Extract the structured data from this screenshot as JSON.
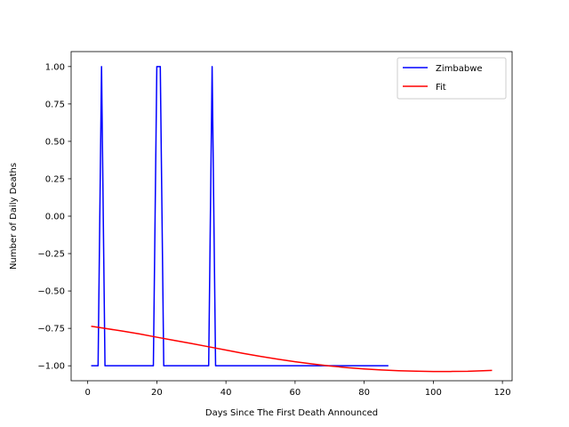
{
  "chart_data": {
    "type": "line",
    "xlabel": "Days Since The First Death Announced",
    "ylabel": "Number of Daily Deaths",
    "xlim": [
      -4.8,
      122.8
    ],
    "ylim": [
      -1.1,
      1.1
    ],
    "x_ticks": [
      0,
      20,
      40,
      60,
      80,
      100,
      120
    ],
    "x_tick_labels": [
      "0",
      "20",
      "40",
      "60",
      "80",
      "100",
      "120"
    ],
    "y_ticks": [
      1.0,
      0.75,
      0.5,
      0.25,
      0.0,
      -0.25,
      -0.5,
      -0.75,
      -1.0
    ],
    "y_tick_labels": [
      "1.00",
      "0.75",
      "0.50",
      "0.25",
      "0.00",
      "−0.25",
      "−0.50",
      "−0.75",
      "−1.00"
    ],
    "grid": false,
    "legend_position": "top-right",
    "series": [
      {
        "name": "Zimbabwe",
        "color": "#0000ff",
        "x": [
          1,
          2,
          3,
          4,
          5,
          6,
          7,
          8,
          9,
          10,
          11,
          12,
          13,
          14,
          15,
          16,
          17,
          18,
          19,
          20,
          21,
          22,
          23,
          24,
          25,
          26,
          27,
          28,
          29,
          30,
          31,
          32,
          33,
          34,
          35,
          36,
          37,
          38,
          39,
          40,
          41,
          42,
          43,
          44,
          45,
          46,
          47,
          48,
          49,
          50,
          51,
          52,
          53,
          54,
          55,
          56,
          57,
          58,
          59,
          60,
          61,
          62,
          63,
          64,
          65,
          66,
          67,
          68,
          69,
          70,
          71,
          72,
          73,
          74,
          75,
          76,
          77,
          78,
          79,
          80,
          81,
          82,
          83,
          84,
          85,
          86,
          87
        ],
        "y": [
          -1,
          -1,
          -1,
          1,
          -1,
          -1,
          -1,
          -1,
          -1,
          -1,
          -1,
          -1,
          -1,
          -1,
          -1,
          -1,
          -1,
          -1,
          -1,
          1,
          1,
          -1,
          -1,
          -1,
          -1,
          -1,
          -1,
          -1,
          -1,
          -1,
          -1,
          -1,
          -1,
          -1,
          -1,
          1,
          -1,
          -1,
          -1,
          -1,
          -1,
          -1,
          -1,
          -1,
          -1,
          -1,
          -1,
          -1,
          -1,
          -1,
          -1,
          -1,
          -1,
          -1,
          -1,
          -1,
          -1,
          -1,
          -1,
          -1,
          -1,
          -1,
          -1,
          -1,
          -1,
          -1,
          -1,
          -1,
          -1,
          -1,
          -1,
          -1,
          -1,
          -1,
          -1,
          -1,
          -1,
          -1,
          -1,
          -1,
          -1,
          -1,
          -1,
          -1,
          -1,
          -1,
          -1
        ]
      },
      {
        "name": "Fit",
        "color": "#ff0000",
        "x": [
          1,
          5,
          10,
          15,
          20,
          25,
          30,
          35,
          40,
          45,
          50,
          55,
          60,
          65,
          70,
          75,
          80,
          85,
          90,
          95,
          100,
          105,
          110,
          117
        ],
        "y": [
          -0.736,
          -0.75,
          -0.768,
          -0.787,
          -0.809,
          -0.83,
          -0.851,
          -0.873,
          -0.895,
          -0.917,
          -0.937,
          -0.956,
          -0.973,
          -0.988,
          -1.001,
          -1.012,
          -1.021,
          -1.028,
          -1.033,
          -1.036,
          -1.038,
          -1.038,
          -1.037,
          -1.031
        ]
      }
    ]
  }
}
